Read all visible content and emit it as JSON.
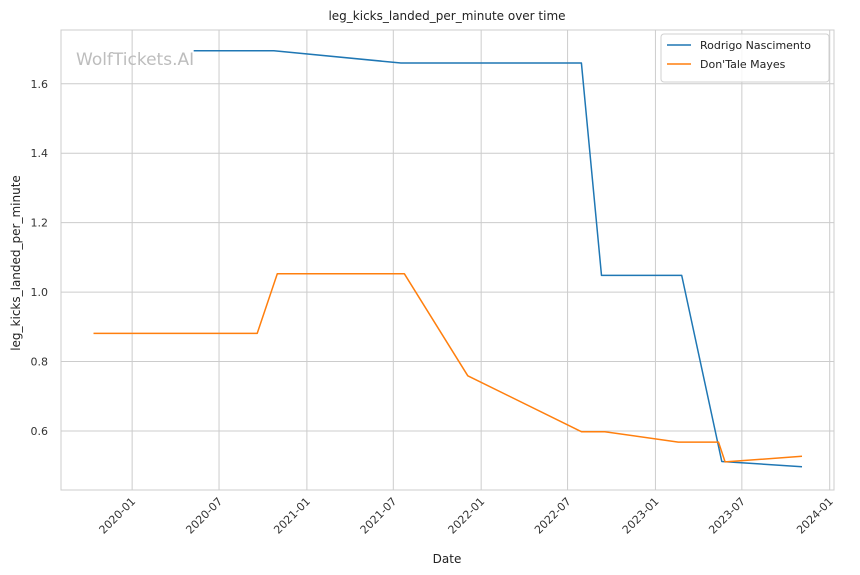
{
  "chart_data": {
    "type": "line",
    "title": "leg_kicks_landed_per_minute over time",
    "xlabel": "Date",
    "ylabel": "leg_kicks_landed_per_minute",
    "watermark": "WolfTickets.AI",
    "x_ticks": [
      "2020-01",
      "2020-07",
      "2021-01",
      "2021-07",
      "2022-01",
      "2022-07",
      "2023-01",
      "2023-07",
      "2024-01"
    ],
    "y_ticks": [
      "0.6",
      "0.8",
      "1.0",
      "1.2",
      "1.4",
      "1.6"
    ],
    "xlim": [
      "2019-08-05",
      "2024-01-10"
    ],
    "ylim": [
      0.43,
      1.755
    ],
    "grid": true,
    "legend_position": "top-right",
    "series": [
      {
        "name": "Rodrigo Nascimento",
        "color": "#1f77b4",
        "points": [
          {
            "x": "2020-05-09",
            "y": 1.695
          },
          {
            "x": "2020-10-24",
            "y": 1.695
          },
          {
            "x": "2021-07-17",
            "y": 1.66
          },
          {
            "x": "2022-07-30",
            "y": 1.66
          },
          {
            "x": "2022-09-10",
            "y": 1.048
          },
          {
            "x": "2023-02-25",
            "y": 1.048
          },
          {
            "x": "2023-05-20",
            "y": 0.512
          },
          {
            "x": "2023-11-04",
            "y": 0.497
          }
        ]
      },
      {
        "name": "Don'Tale Mayes",
        "color": "#ff7f0e",
        "points": [
          {
            "x": "2019-10-12",
            "y": 0.881
          },
          {
            "x": "2020-09-19",
            "y": 0.881
          },
          {
            "x": "2020-10-31",
            "y": 1.053
          },
          {
            "x": "2021-07-24",
            "y": 1.053
          },
          {
            "x": "2021-12-04",
            "y": 0.759
          },
          {
            "x": "2022-07-30",
            "y": 0.598
          },
          {
            "x": "2022-09-17",
            "y": 0.598
          },
          {
            "x": "2023-02-18",
            "y": 0.568
          },
          {
            "x": "2023-05-13",
            "y": 0.568
          },
          {
            "x": "2023-05-27",
            "y": 0.511
          },
          {
            "x": "2023-11-04",
            "y": 0.527
          }
        ]
      }
    ]
  }
}
